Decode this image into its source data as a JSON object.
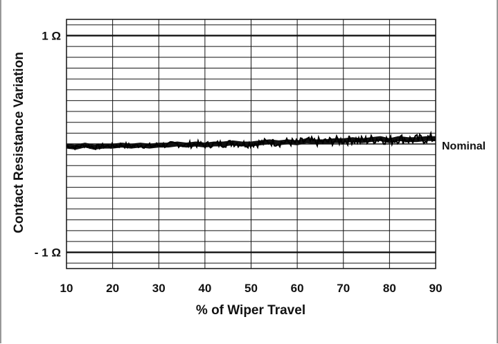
{
  "chart_data": {
    "type": "line",
    "title": "",
    "xlabel": "% of Wiper Travel",
    "ylabel": "Contact Resistance Variation",
    "xlim": [
      10,
      90
    ],
    "ylim": [
      -1.15,
      1.15
    ],
    "x_ticks": [
      10,
      20,
      30,
      40,
      50,
      60,
      70,
      80,
      90
    ],
    "y_labeled_ticks": [
      {
        "value": 1,
        "label": "1 Ω"
      },
      {
        "value": -1,
        "label": "- 1 Ω"
      }
    ],
    "reference_line": {
      "value": 0,
      "label": "Nominal"
    },
    "grid": true,
    "x": [
      10,
      12,
      14,
      16,
      18,
      20,
      22,
      24,
      26,
      28,
      30,
      32,
      34,
      36,
      38,
      40,
      42,
      44,
      46,
      48,
      50,
      52,
      54,
      56,
      58,
      60,
      62,
      64,
      66,
      68,
      70,
      72,
      74,
      76,
      78,
      80,
      82,
      84,
      86,
      88,
      90
    ],
    "values": [
      -0.02,
      -0.03,
      -0.01,
      -0.03,
      -0.02,
      -0.02,
      -0.01,
      -0.02,
      -0.01,
      -0.02,
      -0.01,
      -0.01,
      0.0,
      -0.01,
      0.0,
      -0.01,
      0.0,
      0.0,
      0.01,
      0.0,
      0.0,
      0.01,
      0.02,
      0.01,
      0.02,
      0.01,
      0.03,
      0.02,
      0.02,
      0.03,
      0.03,
      0.04,
      0.03,
      0.04,
      0.05,
      0.03,
      0.05,
      0.04,
      0.04,
      0.05,
      0.05
    ]
  }
}
